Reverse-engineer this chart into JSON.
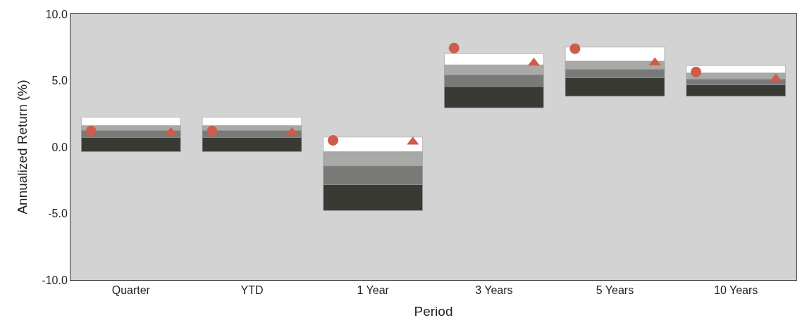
{
  "chart_data": {
    "type": "bar",
    "xlabel": "Period",
    "ylabel": "Annualized Return (%)",
    "categories": [
      "Quarter",
      "YTD",
      "1 Year",
      "3 Years",
      "5 Years",
      "10 Years"
    ],
    "series": [
      {
        "color": "#3a3a35",
        "base": [
          -0.35,
          -0.35,
          -4.78,
          2.95,
          3.82,
          3.82
        ],
        "values": [
          1.08,
          1.08,
          1.95,
          1.6,
          1.4,
          0.86
        ]
      },
      {
        "color": "#797978",
        "base": [
          0.73,
          0.73,
          -2.83,
          4.55,
          5.22,
          4.68
        ],
        "values": [
          0.53,
          0.53,
          1.42,
          0.88,
          0.64,
          0.43
        ]
      },
      {
        "color": "#a9a9a8",
        "base": [
          1.26,
          1.26,
          -1.41,
          5.43,
          5.86,
          5.11
        ],
        "values": [
          0.36,
          0.36,
          1.06,
          0.75,
          0.6,
          0.46
        ]
      },
      {
        "color": "#ffffff",
        "base": [
          1.62,
          1.62,
          -0.35,
          6.18,
          6.46,
          5.57
        ],
        "values": [
          0.62,
          0.62,
          1.1,
          0.84,
          1.06,
          0.56
        ]
      },
      {
        "type": "scatter",
        "marker": "circle",
        "color": "#cd5c4b",
        "x": [
          "Quarter",
          "YTD",
          "1 Year",
          "3 Years",
          "5 Years",
          "10 Years"
        ],
        "values": [
          1.2,
          1.2,
          0.5,
          7.45,
          7.4,
          5.65
        ]
      },
      {
        "type": "scatter",
        "marker": "triangle",
        "color": "#cd5c4b",
        "x": [
          "Quarter",
          "YTD",
          "1 Year",
          "3 Years",
          "5 Years",
          "10 Years"
        ],
        "values": [
          1.1,
          1.1,
          0.38,
          6.32,
          6.35,
          5.13
        ]
      }
    ],
    "ylim": [
      -10,
      10
    ],
    "yticks": [
      {
        "value": -10,
        "label": "-10.0"
      },
      {
        "value": -5,
        "label": "-5.0"
      },
      {
        "value": 0,
        "label": "0.0"
      },
      {
        "value": 5,
        "label": "5.0"
      },
      {
        "value": 10,
        "label": "10.0"
      }
    ],
    "grid": false
  }
}
